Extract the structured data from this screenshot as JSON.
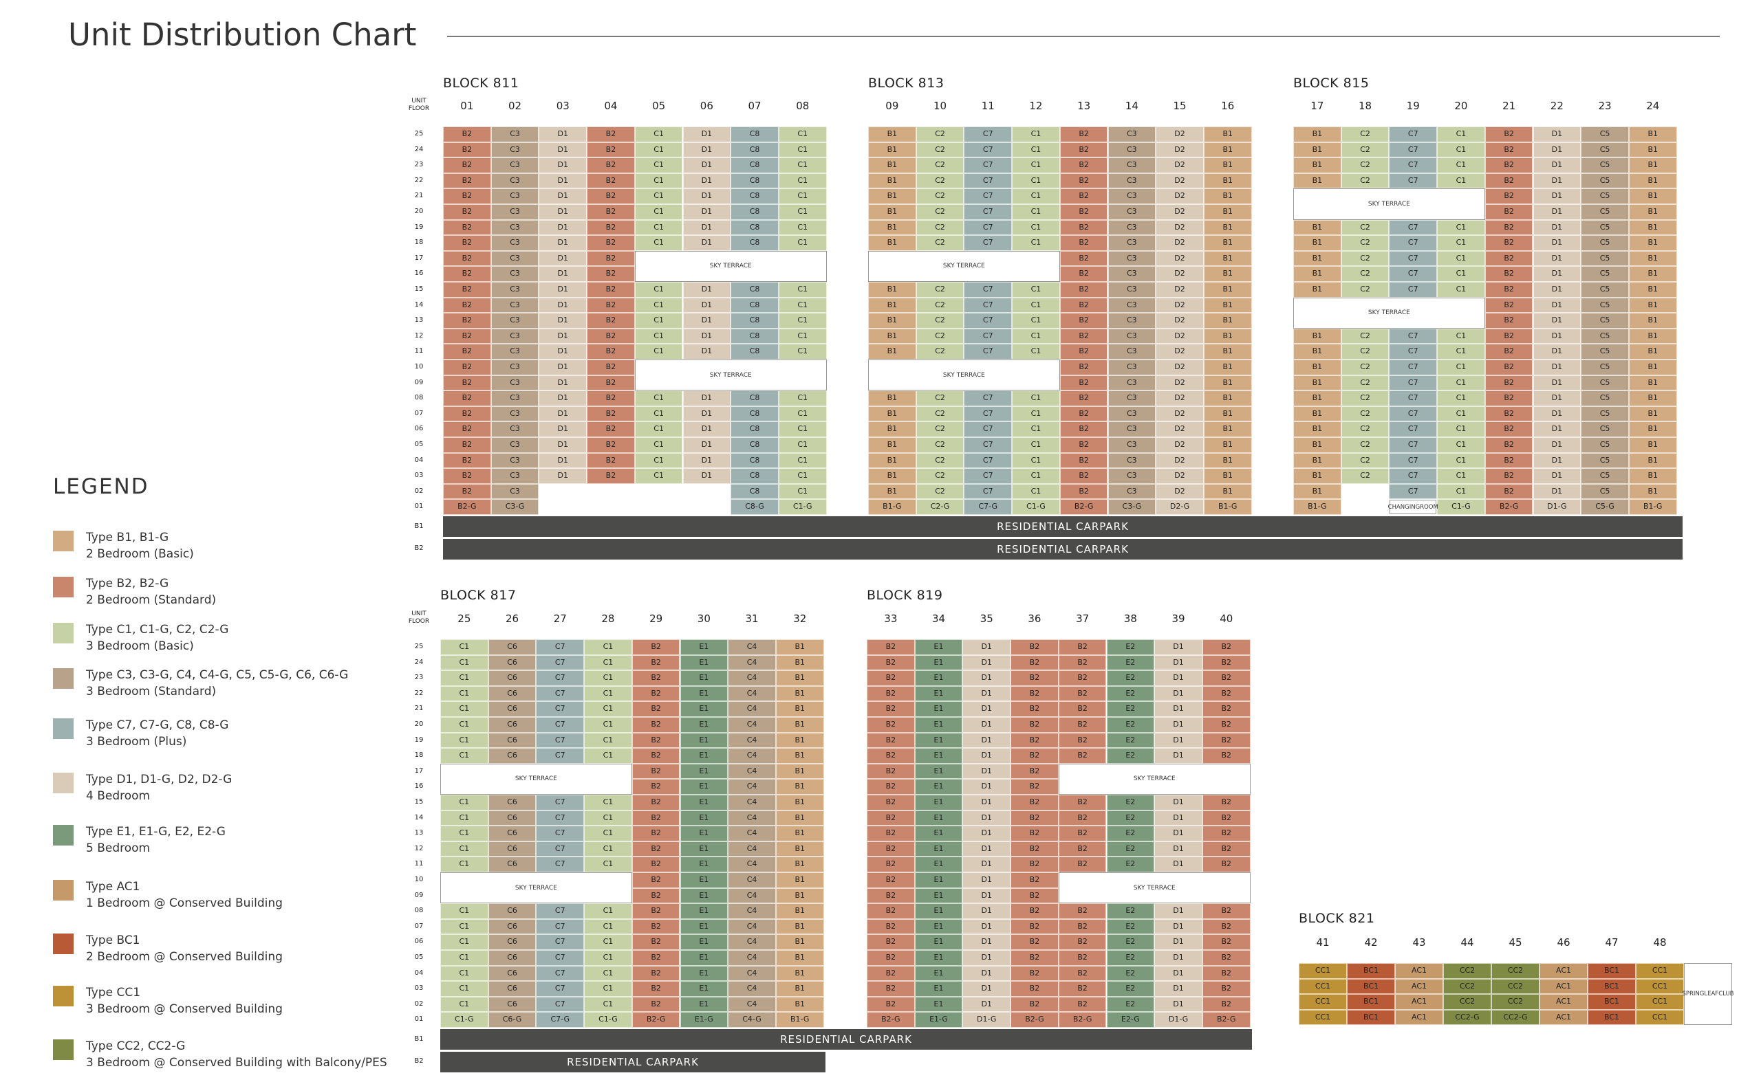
{
  "page": {
    "title": "Unit Distribution Chart"
  },
  "legend": {
    "title": "LEGEND",
    "items": [
      {
        "key": "B1",
        "line1": "Type B1, B1-G",
        "line2": "2 Bedroom (Basic)",
        "color": "#d2ab83"
      },
      {
        "key": "B2",
        "line1": "Type B2, B2-G",
        "line2": "2 Bedroom (Standard)",
        "color": "#c9866c"
      },
      {
        "key": "C1",
        "line1": "Type C1, C1-G, C2, C2-G",
        "line2": "3 Bedroom (Basic)",
        "color": "#c6d2a6"
      },
      {
        "key": "C3",
        "line1": "Type C3, C3-G, C4, C4-G, C5, C5-G, C6, C6-G",
        "line2": "3 Bedroom (Standard)",
        "color": "#b8a38a"
      },
      {
        "key": "C7",
        "line1": "Type C7, C7-G, C8, C8-G",
        "line2": "3 Bedroom (Plus)",
        "color": "#9eb1b1"
      },
      {
        "key": "D1",
        "line1": "Type D1, D1-G, D2, D2-G",
        "line2": "4 Bedroom",
        "color": "#d9cbb7"
      },
      {
        "key": "E1",
        "line1": "Type E1, E1-G, E2, E2-G",
        "line2": "5 Bedroom",
        "color": "#7b9a7c"
      },
      {
        "key": "AC1",
        "line1": "Type AC1",
        "line2": "1 Bedroom @ Conserved Building",
        "color": "#c6996a"
      },
      {
        "key": "BC1",
        "line1": "Type BC1",
        "line2": "2 Bedroom @ Conserved Building",
        "color": "#b85a36"
      },
      {
        "key": "CC1",
        "line1": "Type CC1",
        "line2": "3 Bedroom @ Conserved Building",
        "color": "#bd9236"
      },
      {
        "key": "CC2",
        "line1": "Type CC2, CC2-G",
        "line2": "3 Bedroom @ Conserved Building with Balcony/PES",
        "color": "#7f8b45"
      }
    ]
  },
  "labels": {
    "unit_floor_1": "UNIT",
    "unit_floor_2": "FLOOR",
    "sky_terrace": "SKY TERRACE",
    "residential_carpark": "RESIDENTIAL CARPARK",
    "changing_room_1": "CHANGING",
    "changing_room_2": "ROOM",
    "springleaf_1": "SPRINGLEAF",
    "springleaf_2": "CLUB"
  },
  "basement_floors": [
    "B1",
    "B2"
  ],
  "floors": [
    "25",
    "24",
    "23",
    "22",
    "21",
    "20",
    "19",
    "18",
    "17",
    "16",
    "15",
    "14",
    "13",
    "12",
    "11",
    "10",
    "09",
    "08",
    "07",
    "06",
    "05",
    "04",
    "03",
    "02",
    "01"
  ],
  "blocks": [
    {
      "name": "BLOCK 811",
      "units": [
        "01",
        "02",
        "03",
        "04",
        "05",
        "06",
        "07",
        "08"
      ],
      "types": [
        "B2",
        "C3",
        "D1",
        "B2",
        "C1",
        "D1",
        "C8",
        "C1"
      ],
      "ground": [
        "B2-G",
        "C3-G",
        "",
        "",
        "",
        "",
        "C8-G",
        "C1-G"
      ],
      "terraces": [
        {
          "floors": [
            "17",
            "16"
          ],
          "from": 4,
          "to": 7
        },
        {
          "floors": [
            "10",
            "09"
          ],
          "from": 4,
          "to": 7
        },
        {
          "floors": [
            "02",
            "01"
          ],
          "from": 2,
          "to": 5
        }
      ]
    },
    {
      "name": "BLOCK 813",
      "units": [
        "09",
        "10",
        "11",
        "12",
        "13",
        "14",
        "15",
        "16"
      ],
      "types": [
        "B1",
        "C2",
        "C7",
        "C1",
        "B2",
        "C3",
        "D2",
        "B1"
      ],
      "ground": [
        "B1-G",
        "C2-G",
        "C7-G",
        "C1-G",
        "B2-G",
        "C3-G",
        "D2-G",
        "B1-G"
      ],
      "terraces": [
        {
          "floors": [
            "17",
            "16"
          ],
          "from": 0,
          "to": 3
        },
        {
          "floors": [
            "10",
            "09"
          ],
          "from": 0,
          "to": 3
        }
      ]
    },
    {
      "name": "BLOCK 815",
      "units": [
        "17",
        "18",
        "19",
        "20",
        "21",
        "22",
        "23",
        "24"
      ],
      "types": [
        "B1",
        "C2",
        "C7",
        "C1",
        "B2",
        "D1",
        "C5",
        "B1"
      ],
      "ground": [
        "B1-G",
        "",
        "",
        "C1-G",
        "B2-G",
        "D1-G",
        "C5-G",
        "B1-G"
      ],
      "terraces": [
        {
          "floors": [
            "21",
            "20"
          ],
          "from": 0,
          "to": 3
        },
        {
          "floors": [
            "14",
            "13"
          ],
          "from": 0,
          "to": 3
        }
      ]
    },
    {
      "name": "BLOCK 817",
      "units": [
        "25",
        "26",
        "27",
        "28",
        "29",
        "30",
        "31",
        "32"
      ],
      "types": [
        "C1",
        "C6",
        "C7",
        "C1",
        "B2",
        "E1",
        "C4",
        "B1"
      ],
      "ground": [
        "C1-G",
        "C6-G",
        "C7-G",
        "C1-G",
        "B2-G",
        "E1-G",
        "C4-G",
        "B1-G"
      ],
      "terraces": [
        {
          "floors": [
            "17",
            "16"
          ],
          "from": 0,
          "to": 3
        },
        {
          "floors": [
            "10",
            "09"
          ],
          "from": 0,
          "to": 3
        }
      ]
    },
    {
      "name": "BLOCK 819",
      "units": [
        "33",
        "34",
        "35",
        "36",
        "37",
        "38",
        "39",
        "40"
      ],
      "types": [
        "B2",
        "E1",
        "D1",
        "B2",
        "B2",
        "E2",
        "D1",
        "B2"
      ],
      "ground": [
        "B2-G",
        "E1-G",
        "D1-G",
        "B2-G",
        "B2-G",
        "E2-G",
        "D1-G",
        "B2-G"
      ],
      "terraces": [
        {
          "floors": [
            "17",
            "16"
          ],
          "from": 4,
          "to": 7
        },
        {
          "floors": [
            "10",
            "09"
          ],
          "from": 4,
          "to": 7
        }
      ]
    },
    {
      "name": "BLOCK 821",
      "units": [
        "41",
        "42",
        "43",
        "44",
        "45",
        "46",
        "47",
        "48"
      ],
      "rows": [
        [
          "CC1",
          "BC1",
          "AC1",
          "CC2",
          "CC2",
          "AC1",
          "BC1",
          "CC1"
        ],
        [
          "CC1",
          "BC1",
          "AC1",
          "CC2",
          "CC2",
          "AC1",
          "BC1",
          "CC1"
        ],
        [
          "CC1",
          "BC1",
          "AC1",
          "CC2",
          "CC2",
          "AC1",
          "BC1",
          "CC1"
        ],
        [
          "CC1",
          "BC1",
          "AC1",
          "CC2-G",
          "CC2-G",
          "AC1",
          "BC1",
          "CC1"
        ]
      ]
    }
  ]
}
